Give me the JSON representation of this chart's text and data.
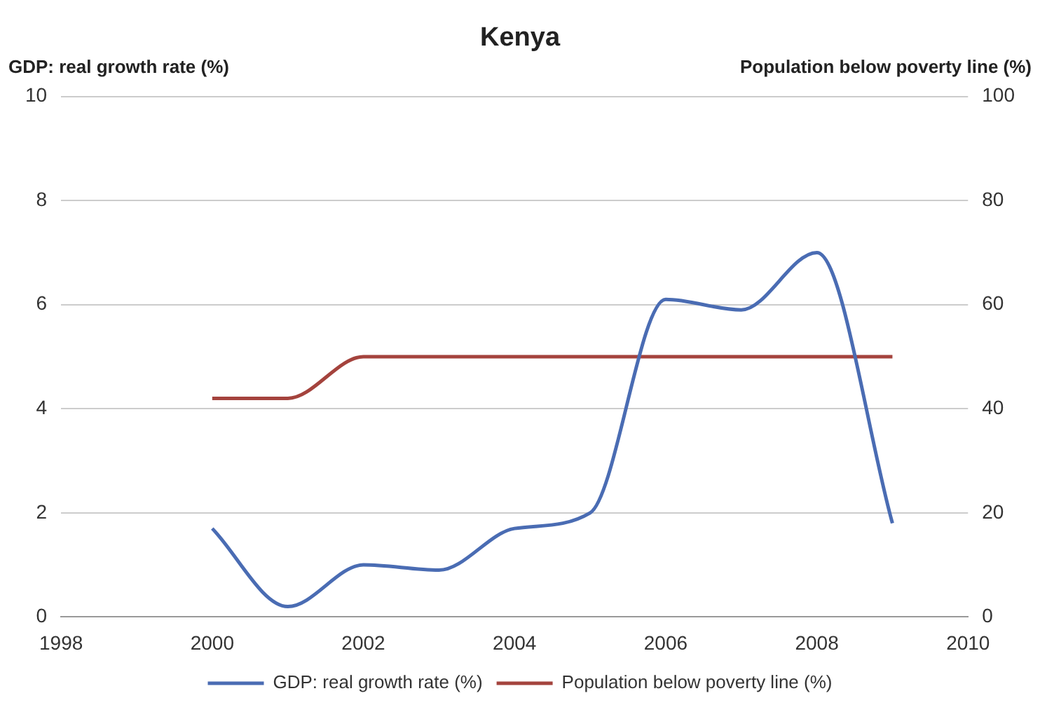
{
  "chart_data": {
    "type": "line",
    "title": "Kenya",
    "ylabel": "GDP: real growth rate (%)",
    "y2label": "Population below poverty line (%)",
    "x": [
      2000,
      2001,
      2002,
      2003,
      2004,
      2005,
      2006,
      2007,
      2008,
      2009
    ],
    "series": [
      {
        "name": "GDP: real growth rate (%)",
        "color": "#4a6cb3",
        "values": [
          1.7,
          0.2,
          1.0,
          0.9,
          1.7,
          2.0,
          6.1,
          5.9,
          7.0,
          1.8
        ]
      },
      {
        "name": "Population below poverty line (%)",
        "color": "#a4433d",
        "axis": "y2",
        "values": [
          42,
          42,
          50,
          50,
          50,
          50,
          50,
          50,
          50,
          50
        ]
      }
    ],
    "xlim": [
      1998,
      2010
    ],
    "xticks": [
      1998,
      2000,
      2002,
      2004,
      2006,
      2008,
      2010
    ],
    "ylim": [
      0,
      10
    ],
    "yticks": [
      0,
      2,
      4,
      6,
      8,
      10
    ],
    "y2lim": [
      0,
      100
    ],
    "y2ticks": [
      0,
      20,
      40,
      60,
      80,
      100
    ],
    "grid": "y",
    "legend": "bottom",
    "marker": "none",
    "line_style": "solid"
  }
}
